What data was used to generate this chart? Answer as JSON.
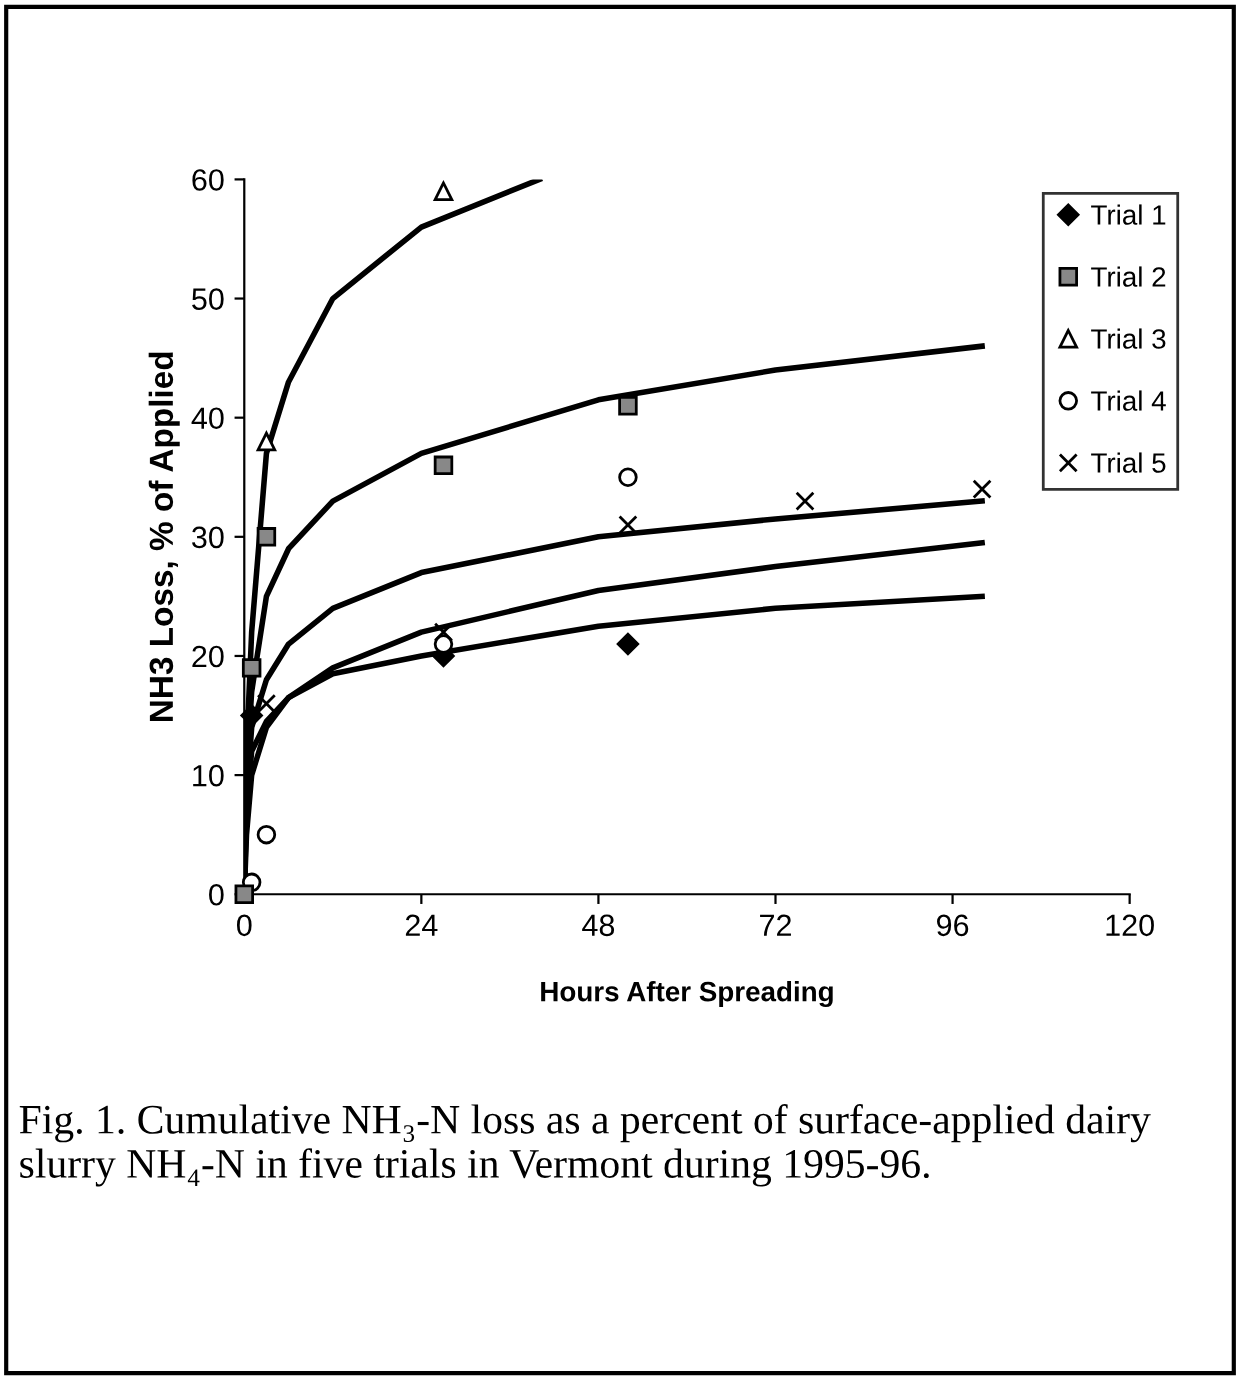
{
  "chart_data": {
    "type": "scatter",
    "xlabel": "Hours After Spreading",
    "ylabel": "NH3 Loss, % of Applied",
    "xlim": [
      0,
      120
    ],
    "ylim": [
      0,
      60
    ],
    "xticks": [
      0,
      24,
      48,
      72,
      96,
      120
    ],
    "yticks": [
      0,
      10,
      20,
      30,
      40,
      50,
      60
    ],
    "grid": false,
    "legend": "top right",
    "series": [
      {
        "name": "Trial 1",
        "color": "#000000",
        "marker": "diamond",
        "x": [
          1,
          27,
          52
        ],
        "values": [
          15,
          20,
          21
        ]
      },
      {
        "name": "Trial 2",
        "color": "#000000",
        "marker": "square",
        "x": [
          0,
          1,
          3,
          27,
          52
        ],
        "values": [
          0,
          19,
          30,
          36,
          41
        ]
      },
      {
        "name": "Trial 3",
        "color": "#000000",
        "marker": "triangle",
        "x": [
          3,
          27
        ],
        "values": [
          38,
          59
        ]
      },
      {
        "name": "Trial 4",
        "color": "#000000",
        "marker": "circle",
        "x": [
          1,
          3,
          27,
          52
        ],
        "values": [
          1,
          5,
          21,
          35
        ]
      },
      {
        "name": "Trial 5",
        "color": "#000000",
        "marker": "cross",
        "x": [
          3,
          27,
          52,
          76,
          100
        ],
        "values": [
          16,
          22,
          31,
          33,
          34
        ]
      },
      {
        "type": "line",
        "color": "#000000",
        "x": [
          0,
          0.3,
          1,
          3,
          6,
          12,
          24,
          40
        ],
        "values": [
          0,
          12,
          22,
          37,
          43,
          50,
          56,
          60
        ]
      },
      {
        "type": "line",
        "color": "#000000",
        "x": [
          0,
          0.3,
          1,
          3,
          6,
          12,
          24,
          48,
          72,
          100
        ],
        "values": [
          0,
          10,
          17,
          25,
          29,
          33,
          37,
          41.5,
          44,
          46
        ]
      },
      {
        "type": "line",
        "color": "#000000",
        "x": [
          0,
          0.3,
          1,
          3,
          6,
          12,
          24,
          48,
          72,
          100
        ],
        "values": [
          0,
          8,
          14,
          18,
          21,
          24,
          27,
          30,
          31.5,
          33
        ]
      },
      {
        "type": "line",
        "color": "#000000",
        "x": [
          0,
          0.3,
          1,
          3,
          6,
          12,
          24,
          48,
          72,
          100
        ],
        "values": [
          0,
          5,
          10,
          14,
          16.5,
          19,
          22,
          25.5,
          27.5,
          29.5
        ]
      },
      {
        "type": "line",
        "color": "#000000",
        "x": [
          0,
          0.3,
          1,
          3,
          6,
          12,
          24,
          48,
          72,
          100
        ],
        "values": [
          0,
          7,
          12,
          14.5,
          16.5,
          18.5,
          20,
          22.5,
          24,
          25
        ]
      }
    ],
    "annotations": [
      "Fig. 1. Cumulative NH₃-N loss as a percent of surface-applied dairy slurry NH₄-N in five trials in Vermont during 1995-96."
    ]
  }
}
